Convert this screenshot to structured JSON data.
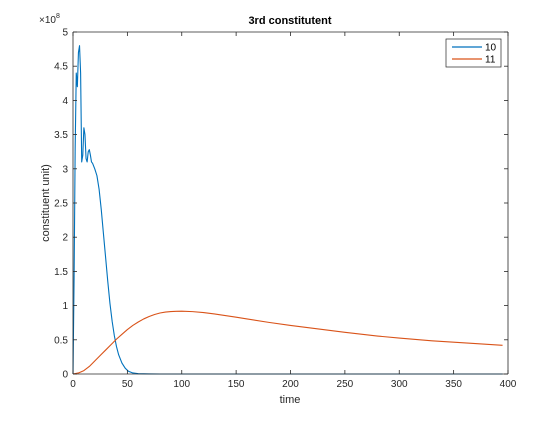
{
  "chart_data": {
    "type": "line",
    "title": "3rd constitutent",
    "xlabel": "time",
    "ylabel": "constituent unit)",
    "xlim": [
      0,
      400
    ],
    "ylim": [
      0,
      500000000
    ],
    "y_exponent_label": "×10",
    "y_exponent_power": "8",
    "xticks": [
      0,
      50,
      100,
      150,
      200,
      250,
      300,
      350,
      400
    ],
    "xtick_labels": [
      "0",
      "50",
      "100",
      "150",
      "200",
      "250",
      "300",
      "350",
      "400"
    ],
    "yticks": [
      0,
      50000000,
      100000000,
      150000000,
      200000000,
      250000000,
      300000000,
      350000000,
      400000000,
      450000000,
      500000000
    ],
    "ytick_labels": [
      "0",
      "0.5",
      "1",
      "1.5",
      "2",
      "2.5",
      "3",
      "3.5",
      "4",
      "4.5",
      "5"
    ],
    "grid": false,
    "legend_position": "top-right",
    "series": [
      {
        "name": "10",
        "color": "#0072BD",
        "x": [
          0,
          1,
          2,
          3,
          4,
          5,
          6,
          7,
          8,
          9,
          10,
          11,
          12,
          13,
          14,
          15,
          16,
          17,
          18,
          20,
          22,
          24,
          26,
          28,
          30,
          32,
          34,
          36,
          38,
          40,
          42,
          45,
          48,
          51,
          55,
          60,
          70,
          80,
          100,
          150,
          200,
          300,
          395
        ],
        "y": [
          0,
          140000000,
          330000000,
          440000000,
          420000000,
          470000000,
          480000000,
          440000000,
          310000000,
          320000000,
          360000000,
          350000000,
          315000000,
          310000000,
          325000000,
          328000000,
          320000000,
          310000000,
          308000000,
          300000000,
          290000000,
          270000000,
          240000000,
          205000000,
          170000000,
          135000000,
          103000000,
          77000000,
          56000000,
          40000000,
          28000000,
          16000000,
          8500000,
          4000000,
          1500000,
          500000,
          100000,
          0,
          0,
          0,
          0,
          0,
          0
        ]
      },
      {
        "name": "11",
        "color": "#D95319",
        "x": [
          0,
          5,
          10,
          15,
          20,
          25,
          30,
          35,
          40,
          45,
          50,
          55,
          60,
          65,
          70,
          75,
          80,
          85,
          90,
          95,
          100,
          110,
          120,
          130,
          140,
          150,
          160,
          180,
          200,
          220,
          250,
          280,
          300,
          330,
          350,
          370,
          395
        ],
        "y": [
          0,
          1500000,
          5000000,
          11000000,
          19000000,
          27000000,
          35000000,
          43000000,
          51000000,
          58000000,
          65000000,
          71000000,
          76000000,
          80500000,
          84000000,
          87000000,
          89200000,
          90500000,
          91300000,
          91700000,
          91800000,
          91200000,
          89800000,
          87800000,
          85500000,
          83000000,
          80500000,
          75500000,
          71000000,
          67000000,
          61000000,
          55500000,
          52500000,
          48500000,
          46500000,
          44500000,
          42000000
        ]
      }
    ]
  }
}
